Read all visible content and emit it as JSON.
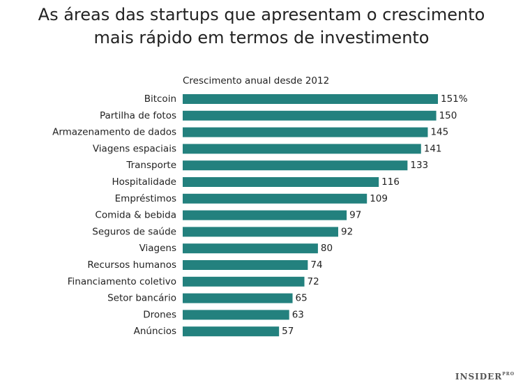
{
  "chart_data": {
    "type": "barh",
    "title": [
      "As áreas das startups que apresentam o crescimento",
      "mais rápido em termos de investimento"
    ],
    "subtitle": "Crescimento anual desde 2012",
    "categories": [
      "Bitcoin",
      "Partilha de fotos",
      "Armazenamento de dados",
      "Viagens espaciais",
      "Transporte",
      "Hospitalidade",
      "Empréstimos",
      "Comida & bebida",
      "Seguros de saúde",
      "Viagens",
      "Recursos humanos",
      "Financiamento coletivo",
      "Setor bancário",
      "Drones",
      "Anúncios"
    ],
    "values": [
      151,
      150,
      145,
      141,
      133,
      116,
      109,
      97,
      92,
      80,
      74,
      72,
      65,
      63,
      57
    ],
    "value_labels": [
      "151%",
      "150",
      "145",
      "141",
      "133",
      "116",
      "109",
      "97",
      "92",
      "80",
      "74",
      "72",
      "65",
      "63",
      "57"
    ],
    "color": "#23817e"
  },
  "footer": {
    "brand": "INSIDER",
    "badge": "PRO"
  }
}
